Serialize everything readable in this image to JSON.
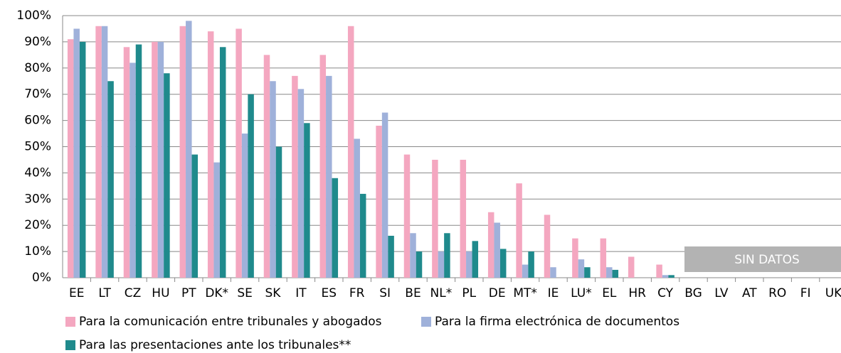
{
  "chart_data": {
    "type": "bar",
    "categories": [
      "EE",
      "LT",
      "CZ",
      "HU",
      "PT",
      "DK*",
      "SE",
      "SK",
      "IT",
      "ES",
      "FR",
      "SI",
      "BE",
      "NL*",
      "PL",
      "DE",
      "MT*",
      "IE",
      "LU*",
      "EL",
      "HR",
      "CY",
      "BG",
      "LV",
      "AT",
      "RO",
      "FI",
      "UK"
    ],
    "series": [
      {
        "name": "Para la comunicación entre tribunales y abogados",
        "color": "#f4a7c0",
        "values": [
          91,
          96,
          88,
          90,
          96,
          94,
          95,
          85,
          77,
          85,
          96,
          58,
          47,
          45,
          45,
          25,
          36,
          24,
          15,
          15,
          8,
          5,
          null,
          null,
          null,
          null,
          null,
          null
        ]
      },
      {
        "name": "Para la firma electrónica de documentos",
        "color": "#9fb1da",
        "values": [
          95,
          96,
          82,
          90,
          98,
          44,
          55,
          75,
          72,
          77,
          53,
          63,
          17,
          10,
          10,
          21,
          5,
          4,
          7,
          4,
          0,
          1,
          null,
          null,
          null,
          null,
          null,
          null
        ]
      },
      {
        "name": "Para las presentaciones ante los tribunales**",
        "color": "#1f8a8c",
        "values": [
          90,
          75,
          89,
          78,
          47,
          88,
          70,
          50,
          59,
          38,
          32,
          16,
          10,
          17,
          14,
          11,
          10,
          0,
          4,
          3,
          0,
          1,
          null,
          null,
          null,
          null,
          null,
          null
        ]
      }
    ],
    "ylim": [
      0,
      100
    ],
    "yticks": [
      {
        "value": 0,
        "label": "0%"
      },
      {
        "value": 10,
        "label": "10%"
      },
      {
        "value": 20,
        "label": "20%"
      },
      {
        "value": 30,
        "label": "30%"
      },
      {
        "value": 40,
        "label": "40%"
      },
      {
        "value": 50,
        "label": "50%"
      },
      {
        "value": 60,
        "label": "60%"
      },
      {
        "value": 70,
        "label": "70%"
      },
      {
        "value": 80,
        "label": "80%"
      },
      {
        "value": 90,
        "label": "90%"
      },
      {
        "value": 100,
        "label": "100%"
      }
    ],
    "grid": true,
    "annotation": "SIN DATOS"
  }
}
